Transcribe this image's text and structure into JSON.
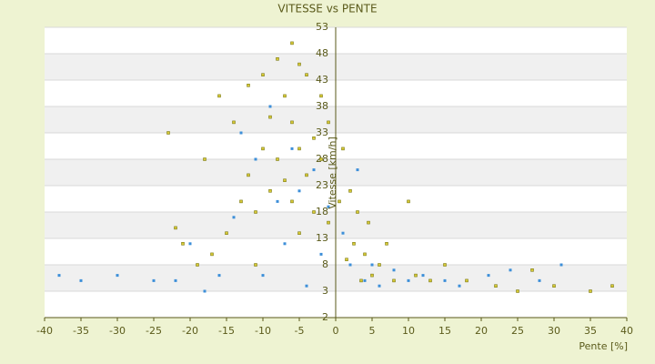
{
  "chart_data": {
    "type": "scatter",
    "title": "VITESSE vs PENTE",
    "x_label": "Pente [%]",
    "y_label": "Vitesse [km/h]",
    "xlim": [
      -40,
      40
    ],
    "xticks": [
      -40,
      -35,
      -30,
      -25,
      -20,
      -15,
      -10,
      -5,
      0,
      5,
      10,
      15,
      20,
      25,
      30,
      35,
      40
    ],
    "ylim": [
      -2,
      53
    ],
    "yticks": [
      -2,
      3,
      8,
      13,
      18,
      23,
      28,
      33,
      38,
      43,
      48,
      53
    ],
    "grid": true,
    "series": [
      {
        "color": "#d6c836",
        "x": [
          -23,
          -22,
          -21,
          -19,
          -18,
          -17,
          -16,
          -15,
          -14,
          -13,
          -12,
          -12,
          -11,
          -11,
          -10,
          -10,
          -9,
          -9,
          -8,
          -8,
          -7,
          -7,
          -6,
          -6,
          -6,
          -5,
          -5,
          -5,
          -4,
          -4,
          -3,
          -3,
          -2,
          -2,
          -1,
          -1,
          0.5,
          1,
          1.5,
          2,
          2.5,
          3,
          3.5,
          4,
          4.5,
          5,
          6,
          7,
          8,
          10,
          11,
          13,
          15,
          18,
          22,
          25,
          27,
          30,
          35,
          38
        ],
        "values": [
          33,
          15,
          12,
          8,
          28,
          10,
          40,
          14,
          35,
          20,
          42,
          25,
          8,
          18,
          44,
          30,
          36,
          22,
          47,
          28,
          40,
          24,
          50,
          35,
          20,
          46,
          30,
          14,
          44,
          25,
          32,
          18,
          40,
          28,
          35,
          16,
          20,
          30,
          9,
          22,
          12,
          18,
          5,
          10,
          16,
          6,
          8,
          12,
          5,
          20,
          6,
          5,
          8,
          5,
          4,
          3,
          7,
          4,
          3,
          4
        ]
      },
      {
        "color": "#3d8fd9",
        "x": [
          -38,
          -35,
          -30,
          -25,
          -22,
          -20,
          -18,
          -16,
          -14,
          -13,
          -11,
          -10,
          -9,
          -8,
          -7,
          -6,
          -5,
          -4,
          -3,
          -2,
          -1,
          1,
          2,
          3,
          4,
          5,
          6,
          8,
          10,
          12,
          15,
          17,
          21,
          24,
          28,
          31
        ],
        "values": [
          6,
          5,
          6,
          5,
          5,
          12,
          3,
          6,
          17,
          33,
          28,
          6,
          38,
          20,
          12,
          30,
          22,
          4,
          26,
          10,
          19,
          14,
          8,
          26,
          5,
          8,
          4,
          7,
          5,
          6,
          5,
          4,
          6,
          7,
          5,
          8
        ]
      }
    ]
  }
}
